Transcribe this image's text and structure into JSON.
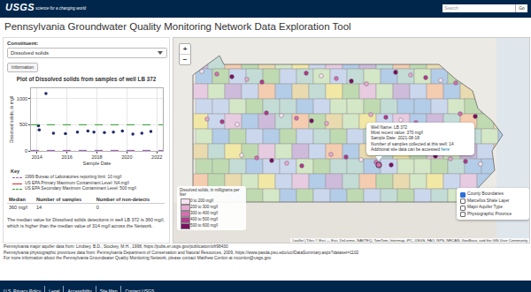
{
  "header": {
    "logo": "USGS",
    "tagline": "science for a changing world",
    "search_placeholder": "Search",
    "search_button": "Go"
  },
  "title": "Pennsylvania Groundwater Quality Monitoring Network Data Exploration Tool",
  "sidebar": {
    "constituent_label": "Constituent:",
    "constituent": "Dissolved solids",
    "info_button": "Information",
    "table": {
      "headers": [
        "Median",
        "Number of samples",
        "Number of non-detects"
      ],
      "rows": [
        [
          "360 mg/l",
          "14",
          "0"
        ]
      ]
    },
    "summary": "The median value for Dissolved solids detections in well LB 372 is 360 mg/l, which is higher than the median value of 314 mg/l across the Network."
  },
  "chart_data": {
    "type": "scatter",
    "title": "Plot of Dissolved solids from samples of well  LB 372",
    "x_label": "Sample Date",
    "y_label": "Dissolved solids, in mg/l",
    "x": [
      2014.1,
      2014.15,
      2014.6,
      2015.1,
      2015.9,
      2016.7,
      2017.4,
      2017.8,
      2018.5,
      2019.1,
      2019.7,
      2020.4,
      2021.0,
      2021.6
    ],
    "values": [
      480,
      400,
      1100,
      340,
      330,
      360,
      380,
      360,
      350,
      360,
      380,
      320,
      340,
      370
    ],
    "color": "#1f2a6b",
    "marker": "circle",
    "xlim": [
      2013.6,
      2022.4
    ],
    "xticks": [
      2014,
      2016,
      2018,
      2020,
      2022
    ],
    "ylim": [
      0,
      1200
    ],
    "yticks": [
      0,
      500,
      1000
    ],
    "grid": true,
    "key_title": "Key",
    "reference_lines": [
      {
        "name": "1999 Bureau of Laboratories reporting limit: 10 mg/l",
        "value": 10,
        "color": "#9b59b6",
        "line_style": "dashed"
      },
      {
        "name": "US EPA Primary Maximum Contaminant Level: NA mg/l",
        "value": null,
        "color": "#d62728",
        "line_style": "solid"
      },
      {
        "name": "US EPA Secondary Maximum Contaminant Level: 500 mg/l",
        "value": 500,
        "color": "#2ca02c",
        "line_style": "dashed"
      }
    ]
  },
  "map": {
    "zoom": [
      "+",
      "−"
    ],
    "popup": {
      "lines": [
        "Well Name: LB 372",
        "Most recent value: 370 mg/l",
        "Sample Date: 2021-08-18",
        "Number of samples collected at this well: 14"
      ],
      "link_text": "Additional site data can be accessed",
      "link": "here"
    },
    "legend": {
      "title": "Dissolved solids, in milligrams per liter",
      "entries": [
        {
          "label": "0 to 200 mg/l",
          "color": "#f7e1f0"
        },
        {
          "label": "200 to 300 mg/l",
          "color": "#e7a9d1"
        },
        {
          "label": "300 to 400 mg/l",
          "color": "#d36fb0"
        },
        {
          "label": "400 to 500 mg/l",
          "color": "#b03a8c"
        },
        {
          "label": "500 to 600 mg/l",
          "color": "#7a1060"
        }
      ]
    },
    "layers": [
      "County Boundaries",
      "Marcellus Shale Layer",
      "Major Aquifer Type",
      "Physiographic Province"
    ],
    "attribution": "Leaflet | Tiles © Esri — Esri, DeLorme, NAVTEQ, TomTom, Intermap, iPC, USGS, FAO, NPS, NRCAN, GeoBase, and the GIS User Community"
  },
  "footer": {
    "notes": [
      "Pennsylvania major aquifer data from: Lindsey, B.D., Stuckey, M.H., 1998, https://pubs.er.usgs.gov/publication/ofr98430",
      "Pennsylvania physiographic provinces data from: Pennsylvania Department of Conservation and Natural Resources, 2009, https://www.pasda.psu.edu/uci/DataSummary.aspx?dataset=1102",
      "For more information about the Pennsylvania Groundwater Quality Monitoring Network, please contact Matthew Conlon at mconlon@usgs.gov"
    ],
    "links": [
      "U.S. Privacy Policy",
      "Legal",
      "Accessibility",
      "Site Map",
      "Contact USGS"
    ]
  }
}
